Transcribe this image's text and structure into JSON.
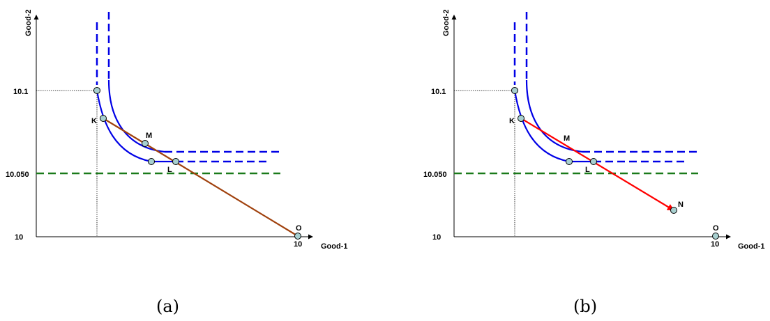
{
  "panels": [
    {
      "id": "a",
      "caption": "(a)",
      "x_axis_label": "Good-1",
      "y_axis_label": "Good-2",
      "y_ticks": [
        "10.1",
        "10.050",
        "10"
      ],
      "x_tick": "10",
      "points": [
        "K",
        "M",
        "L",
        "O"
      ],
      "segment": {
        "from": "K",
        "to": "O",
        "style": "line",
        "color": "#a0410d"
      }
    },
    {
      "id": "b",
      "caption": "(b)",
      "x_axis_label": "Good-1",
      "y_axis_label": "Good-2",
      "y_ticks": [
        "10.1",
        "10.050",
        "10"
      ],
      "x_tick": "10",
      "points": [
        "K",
        "M",
        "L",
        "N",
        "O"
      ],
      "segment": {
        "from": "K",
        "to": "N",
        "style": "arrow",
        "color": "#ff0000"
      }
    }
  ],
  "colors": {
    "indifference_curves": "#0000e6",
    "horizontal_reference": "#1a7a1a",
    "point_fill": "#a8d0d0",
    "guides": "#000000"
  }
}
